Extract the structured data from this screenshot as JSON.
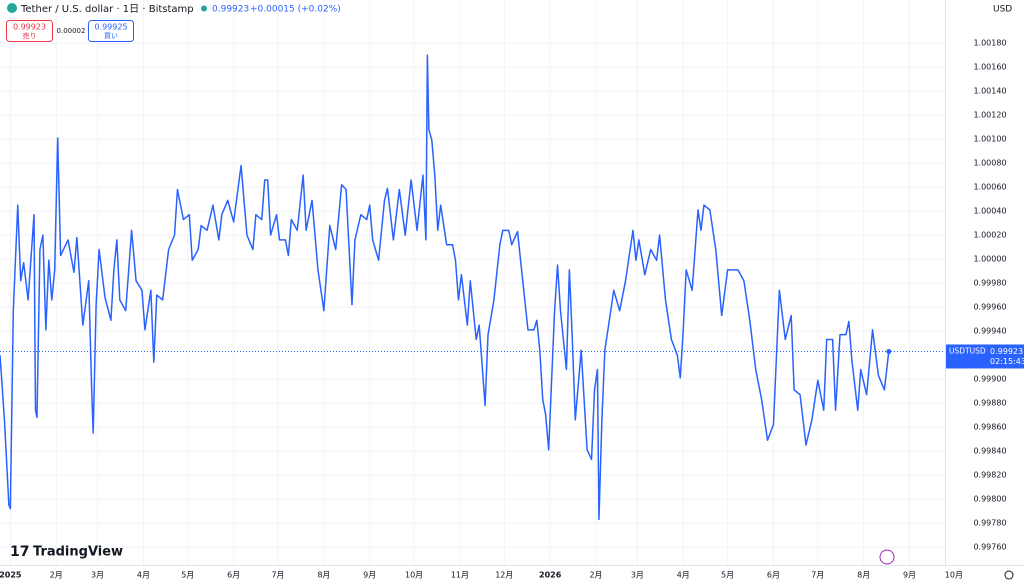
{
  "ui": {
    "symbol": "Tether / U.S. dollar · 1日 · Bitstamp",
    "price": "0.99923",
    "change": "+0.00015 (+0.02%)",
    "sell_price": "0.99923",
    "sell_label": "売り",
    "spread": "0.00002",
    "buy_price": "0.99925",
    "buy_label": "買い",
    "currency": "USD",
    "brand": "TradingView",
    "tag_symbol": "USDTUSD",
    "tag_price": "0.99923",
    "tag_time": "02:15:43"
  },
  "chart_data": {
    "type": "line",
    "grid": true,
    "x": [
      -7,
      -4,
      -1,
      0,
      2,
      5,
      7,
      9,
      12,
      16,
      17,
      18,
      20,
      22,
      24,
      26,
      28,
      30,
      32,
      34,
      39,
      43,
      45,
      49,
      53,
      55,
      56,
      58,
      60,
      64,
      68,
      70,
      72,
      74,
      78,
      82,
      85,
      89,
      91,
      95,
      97,
      99,
      103,
      107,
      111,
      113,
      117,
      121,
      123,
      127,
      129,
      133,
      137,
      141,
      143,
      147,
      151,
      156,
      160,
      164,
      166,
      170,
      172,
      174,
      176,
      180,
      182,
      186,
      188,
      190,
      194,
      198,
      200,
      204,
      208,
      212,
      216,
      220,
      224,
      227,
      231,
      233,
      237,
      241,
      243,
      245,
      249,
      253,
      255,
      259,
      263,
      267,
      271,
      275,
      279,
      281,
      282,
      283,
      285,
      287,
      289,
      291,
      295,
      299,
      301,
      303,
      305,
      309,
      311,
      315,
      317,
      319,
      321,
      323,
      327,
      331,
      333,
      337,
      339,
      343,
      345,
      350,
      354,
      356,
      358,
      360,
      362,
      364,
      366,
      368,
      370,
      372,
      376,
      378,
      380,
      382,
      386,
      390,
      393,
      395,
      397,
      398,
      400,
      402,
      406,
      408,
      412,
      416,
      421,
      423,
      425,
      429,
      433,
      437,
      439,
      443,
      447,
      451,
      453,
      455,
      457,
      461,
      465,
      467,
      469,
      473,
      477,
      481,
      485,
      492,
      496,
      500,
      504,
      508,
      512,
      516,
      520,
      524,
      528,
      530,
      534,
      538,
      542,
      546,
      550,
      552,
      556,
      558,
      561,
      565,
      567,
      569,
      573,
      575,
      579,
      583,
      587,
      591,
      594
    ],
    "series": [
      {
        "name": "USDTUSD",
        "color": "#2962ff",
        "values": [
          0.9992,
          0.99866,
          0.99795,
          0.99792,
          0.99957,
          1.00045,
          0.99982,
          0.99997,
          0.99966,
          1.00037,
          0.99874,
          0.99868,
          1.00008,
          1.0002,
          0.99941,
          0.99999,
          0.99966,
          0.99991,
          1.00101,
          1.00003,
          1.00016,
          0.99989,
          1.00018,
          0.99945,
          0.99982,
          0.99891,
          0.99855,
          0.99962,
          1.00008,
          0.99968,
          0.99949,
          0.99991,
          1.00016,
          0.99966,
          0.99957,
          1.00024,
          0.99982,
          0.99974,
          0.99941,
          0.99974,
          0.99914,
          0.9997,
          0.99966,
          1.00008,
          1.0002,
          1.00058,
          1.00033,
          1.00037,
          0.99999,
          1.00008,
          1.00028,
          1.00024,
          1.00045,
          1.00016,
          1.00037,
          1.00049,
          1.00031,
          1.00078,
          1.0002,
          1.00008,
          1.00037,
          1.00033,
          1.00066,
          1.00066,
          1.0002,
          1.00037,
          1.00016,
          1.00016,
          1.00003,
          1.00033,
          1.00024,
          1.0007,
          1.00024,
          1.00049,
          0.99991,
          0.99957,
          1.00028,
          1.00008,
          1.00062,
          1.00058,
          0.99962,
          1.00016,
          1.00037,
          1.00033,
          1.00045,
          1.00016,
          0.99999,
          1.00049,
          1.00059,
          1.00016,
          1.00058,
          1.0002,
          1.00066,
          1.00024,
          1.0007,
          1.00016,
          1.0017,
          1.00108,
          1.00099,
          1.0007,
          1.00024,
          1.00045,
          1.00012,
          1.00012,
          0.99999,
          0.99966,
          0.99987,
          0.99945,
          0.99982,
          0.99933,
          0.99945,
          0.99912,
          0.99878,
          0.99937,
          0.99966,
          1.00012,
          1.00024,
          1.00024,
          1.00012,
          1.00023,
          0.99999,
          0.99941,
          0.99941,
          0.99949,
          0.99924,
          0.99883,
          0.9987,
          0.99841,
          0.99899,
          0.99957,
          0.99995,
          0.99957,
          0.99908,
          0.99991,
          0.99933,
          0.99866,
          0.99924,
          0.99841,
          0.99833,
          0.99891,
          0.99908,
          0.99783,
          0.99866,
          0.99924,
          0.99957,
          0.99974,
          0.99957,
          0.99982,
          1.00024,
          0.99999,
          1.00016,
          0.99987,
          1.00008,
          0.99999,
          1.0002,
          0.99966,
          0.99933,
          0.9992,
          0.99901,
          0.99941,
          0.99991,
          0.99974,
          1.00041,
          1.00024,
          1.00045,
          1.00041,
          1.00008,
          0.99953,
          0.99991,
          0.99991,
          0.99982,
          0.99949,
          0.99908,
          0.99883,
          0.99849,
          0.99862,
          0.99974,
          0.99933,
          0.99953,
          0.99891,
          0.99887,
          0.99845,
          0.99866,
          0.99899,
          0.99874,
          0.99933,
          0.99933,
          0.99874,
          0.99937,
          0.99937,
          0.99948,
          0.99916,
          0.99874,
          0.99908,
          0.99887,
          0.99941,
          0.99903,
          0.99891,
          0.99923
        ]
      }
    ],
    "xlim": [
      -7,
      632
    ],
    "ylim": [
      0.99745,
      1.00216
    ],
    "xticks": [
      {
        "value": 0,
        "label": "2025"
      },
      {
        "value": 31,
        "label": "2月"
      },
      {
        "value": 59,
        "label": "3月"
      },
      {
        "value": 90,
        "label": "4月"
      },
      {
        "value": 120,
        "label": "5月"
      },
      {
        "value": 151,
        "label": "6月"
      },
      {
        "value": 181,
        "label": "7月"
      },
      {
        "value": 212,
        "label": "8月"
      },
      {
        "value": 243,
        "label": "9月"
      },
      {
        "value": 273,
        "label": "10月"
      },
      {
        "value": 304,
        "label": "11月"
      },
      {
        "value": 334,
        "label": "12月"
      },
      {
        "value": 365,
        "label": "2026"
      },
      {
        "value": 396,
        "label": "2月"
      },
      {
        "value": 424,
        "label": "3月"
      },
      {
        "value": 455,
        "label": "4月"
      },
      {
        "value": 485,
        "label": "5月"
      },
      {
        "value": 516,
        "label": "6月"
      },
      {
        "value": 546,
        "label": "7月"
      },
      {
        "value": 577,
        "label": "8月"
      },
      {
        "value": 608,
        "label": "9月"
      },
      {
        "value": 638,
        "label": "10月"
      }
    ],
    "yticks": [
      {
        "value": 0.9976,
        "label": "0.99760"
      },
      {
        "value": 0.9978,
        "label": "0.99780"
      },
      {
        "value": 0.998,
        "label": "0.99800"
      },
      {
        "value": 0.9982,
        "label": "0.99820"
      },
      {
        "value": 0.9984,
        "label": "0.99840"
      },
      {
        "value": 0.9986,
        "label": "0.99860"
      },
      {
        "value": 0.9988,
        "label": "0.99880"
      },
      {
        "value": 0.999,
        "label": "0.99900"
      },
      {
        "value": 0.9994,
        "label": "0.99940"
      },
      {
        "value": 0.9996,
        "label": "0.99960"
      },
      {
        "value": 0.9998,
        "label": "0.99980"
      },
      {
        "value": 1.0,
        "label": "1.00000"
      },
      {
        "value": 1.0002,
        "label": "1.00020"
      },
      {
        "value": 1.0004,
        "label": "1.00040"
      },
      {
        "value": 1.0006,
        "label": "1.00060"
      },
      {
        "value": 1.0008,
        "label": "1.00080"
      },
      {
        "value": 1.001,
        "label": "1.00100"
      },
      {
        "value": 1.0012,
        "label": "1.00120"
      },
      {
        "value": 1.0014,
        "label": "1.00140"
      },
      {
        "value": 1.0016,
        "label": "1.00160"
      },
      {
        "value": 1.0018,
        "label": "1.00180"
      }
    ]
  }
}
